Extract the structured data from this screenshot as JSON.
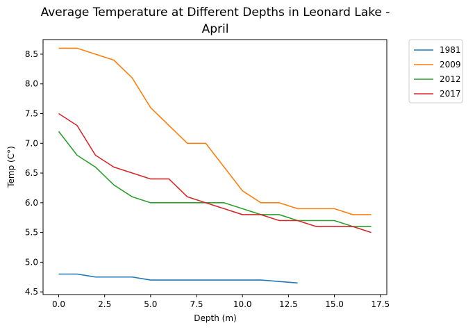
{
  "chart_data": {
    "type": "line",
    "title_lines": [
      "Average Temperature at Different Depths in Leonard Lake -",
      "April"
    ],
    "xlabel": "Depth (m)",
    "ylabel": "Temp (C°)",
    "xlim": [
      -0.85,
      17.85
    ],
    "ylim": [
      4.455,
      8.745
    ],
    "xticks": [
      0.0,
      2.5,
      5.0,
      7.5,
      10.0,
      12.5,
      15.0,
      17.5
    ],
    "xtick_labels": [
      "0.0",
      "2.5",
      "5.0",
      "7.5",
      "10.0",
      "12.5",
      "15.0",
      "17.5"
    ],
    "yticks": [
      4.5,
      5.0,
      5.5,
      6.0,
      6.5,
      7.0,
      7.5,
      8.0,
      8.5
    ],
    "ytick_labels": [
      "4.5",
      "5.0",
      "5.5",
      "6.0",
      "6.5",
      "7.0",
      "7.5",
      "8.0",
      "8.5"
    ],
    "grid": false,
    "legend_position": "outside-top-right",
    "series": [
      {
        "name": "1981",
        "color": "#1f77b4",
        "x": [
          0,
          1,
          2,
          3,
          4,
          5,
          6,
          7,
          8,
          9,
          10,
          11,
          12,
          13
        ],
        "y": [
          4.8,
          4.8,
          4.75,
          4.75,
          4.75,
          4.7,
          4.7,
          4.7,
          4.7,
          4.7,
          4.7,
          4.7,
          4.675,
          4.65
        ]
      },
      {
        "name": "2009",
        "color": "#ff7f0e",
        "x": [
          0,
          1,
          2,
          3,
          4,
          5,
          6,
          7,
          8,
          9,
          10,
          11,
          12,
          13,
          14,
          15,
          16,
          17
        ],
        "y": [
          8.6,
          8.6,
          8.5,
          8.4,
          8.1,
          7.6,
          7.3,
          7.0,
          7.0,
          6.6,
          6.2,
          6.0,
          6.0,
          5.9,
          5.9,
          5.9,
          5.8,
          5.8
        ]
      },
      {
        "name": "2012",
        "color": "#2ca02c",
        "x": [
          0,
          1,
          2,
          3,
          4,
          5,
          6,
          7,
          8,
          9,
          10,
          11,
          12,
          13,
          14,
          15,
          16,
          17
        ],
        "y": [
          7.2,
          6.8,
          6.6,
          6.3,
          6.1,
          6.0,
          6.0,
          6.0,
          6.0,
          6.0,
          5.9,
          5.8,
          5.8,
          5.7,
          5.7,
          5.7,
          5.6,
          5.6
        ]
      },
      {
        "name": "2017",
        "color": "#d62728",
        "x": [
          0,
          1,
          2,
          3,
          4,
          5,
          6,
          7,
          8,
          9,
          10,
          11,
          12,
          13,
          14,
          15,
          16,
          17
        ],
        "y": [
          7.5,
          7.3,
          6.8,
          6.6,
          6.5,
          6.4,
          6.4,
          6.1,
          6.0,
          5.9,
          5.8,
          5.8,
          5.7,
          5.7,
          5.6,
          5.6,
          5.6,
          5.5
        ]
      }
    ]
  }
}
